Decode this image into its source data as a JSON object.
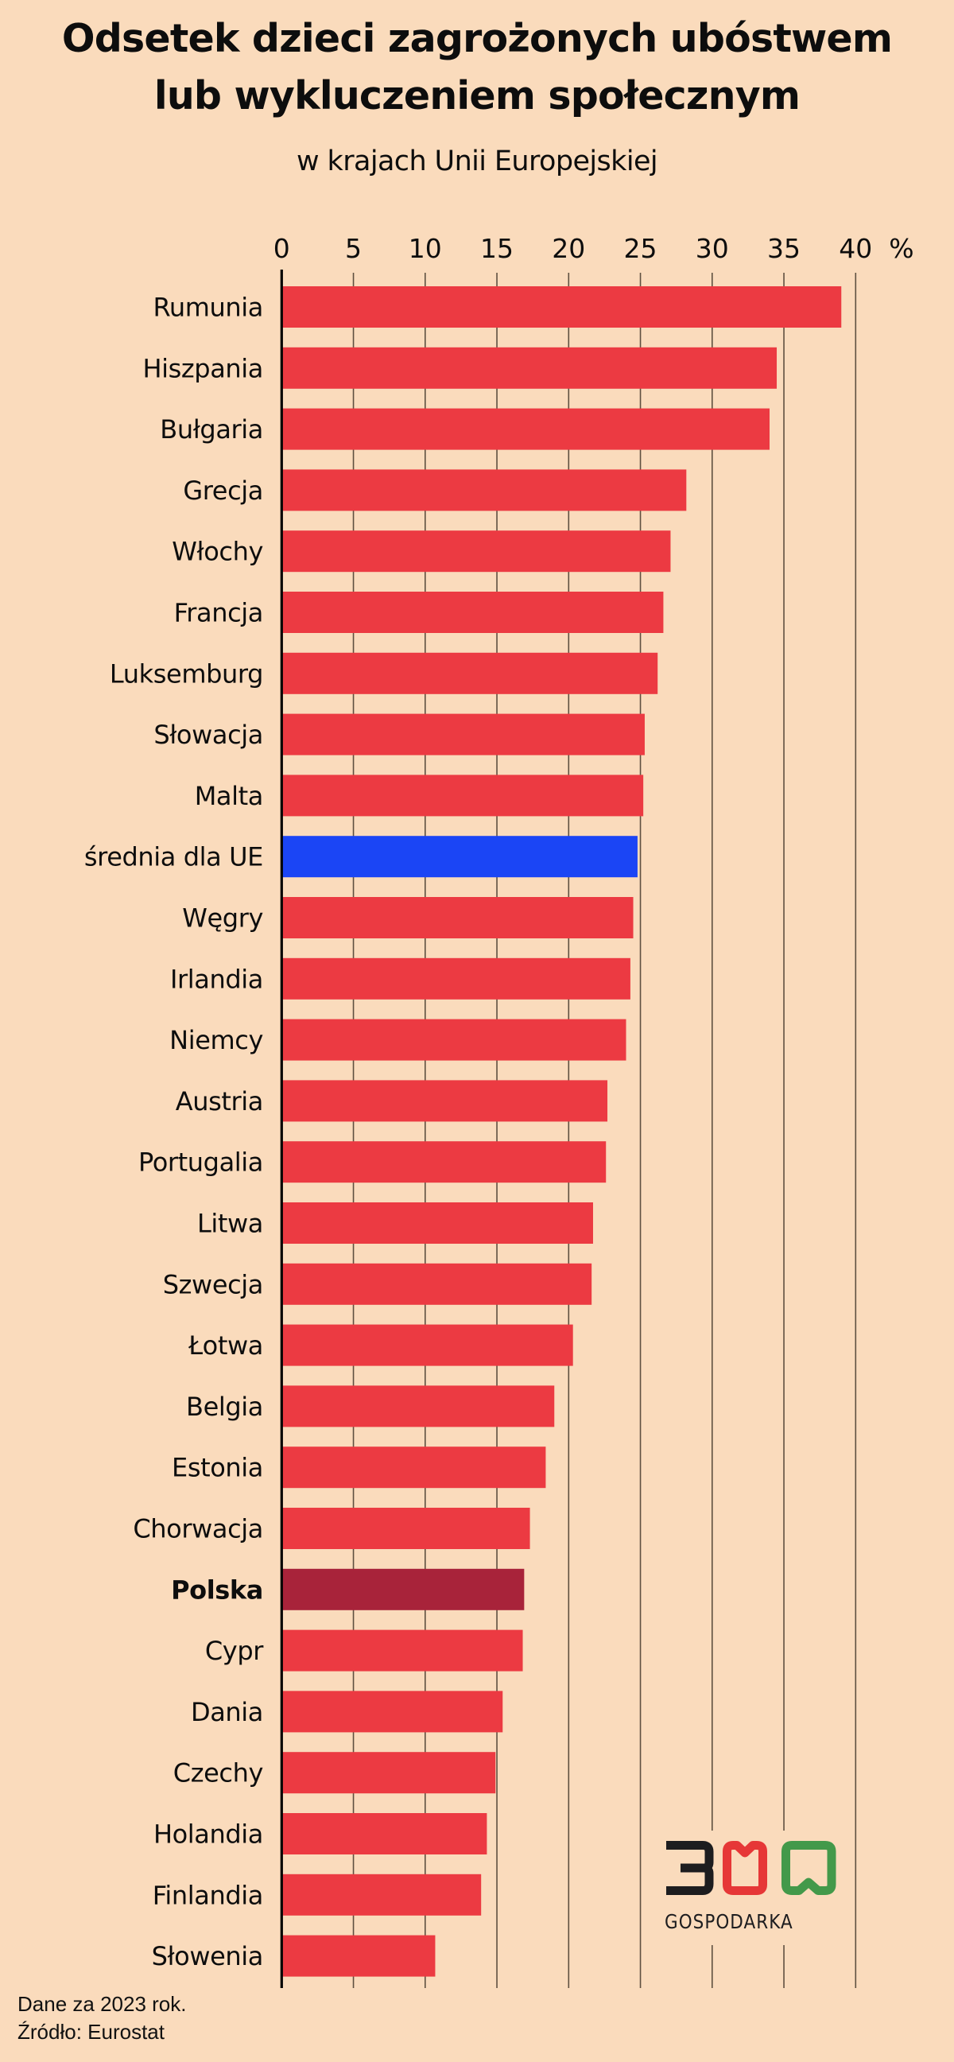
{
  "chart_data": {
    "type": "bar",
    "orientation": "horizontal",
    "title": "Odsetek dzieci zagrożonych ubóstwem lub wykluczeniem społecznym",
    "title_lines": [
      "Odsetek dzieci zagrożonych ubóstwem",
      "lub wykluczeniem społecznym"
    ],
    "subtitle": "w krajach Unii Europejskiej",
    "xlabel": "",
    "ylabel": "",
    "unit_label": "%",
    "xlim": [
      0,
      40
    ],
    "xticks": [
      0,
      5,
      10,
      15,
      20,
      25,
      30,
      35,
      40
    ],
    "grid": true,
    "categories": [
      "Rumunia",
      "Hiszpania",
      "Bułgaria",
      "Grecja",
      "Włochy",
      "Francja",
      "Luksemburg",
      "Słowacja",
      "Malta",
      "średnia dla UE",
      "Węgry",
      "Irlandia",
      "Niemcy",
      "Austria",
      "Portugalia",
      "Litwa",
      "Szwecja",
      "Łotwa",
      "Belgia",
      "Estonia",
      "Chorwacja",
      "Polska",
      "Cypr",
      "Dania",
      "Czechy",
      "Holandia",
      "Finlandia",
      "Słowenia"
    ],
    "values": [
      39.0,
      34.5,
      34.0,
      28.2,
      27.1,
      26.6,
      26.2,
      25.3,
      25.2,
      24.8,
      24.5,
      24.3,
      24.0,
      22.7,
      22.6,
      21.7,
      21.6,
      20.3,
      19.0,
      18.4,
      17.3,
      16.9,
      16.8,
      15.4,
      14.9,
      14.3,
      13.9,
      10.7
    ],
    "highlights": {
      "średnia dla UE": "eu-average",
      "Polska": "poland"
    },
    "colors": {
      "default": "#ec3a42",
      "eu-average": "#1b45f5",
      "poland": "#a8233a"
    }
  },
  "footer": {
    "note": "Dane za 2023 rok.",
    "source": "Źródło: Eurostat"
  },
  "logo": {
    "number": "300",
    "word": "GOSPODARKA",
    "colors": [
      "#1d1d1f",
      "#e63737",
      "#43994a"
    ]
  }
}
